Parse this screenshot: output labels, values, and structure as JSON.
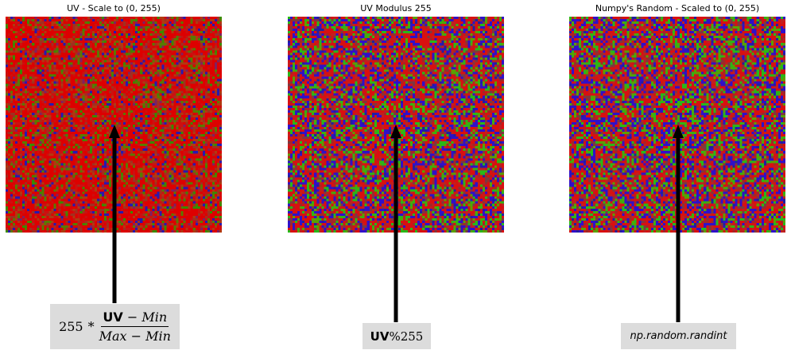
{
  "panels": [
    {
      "title": "UV - Scale to (0, 255)",
      "palette": [
        "#dd0000",
        "#cc1010",
        "#a03020",
        "#b03a10",
        "#5a7a00",
        "#2818b0",
        "#3a8a00",
        "#802060"
      ],
      "weights": [
        0.42,
        0.14,
        0.1,
        0.1,
        0.09,
        0.07,
        0.05,
        0.03
      ],
      "label": {
        "type": "formula",
        "coef": "255",
        "op": "*",
        "num_bold": "UV",
        "num_rest": " − Min",
        "den": "Max − Min"
      }
    },
    {
      "title": "UV Modulus 255",
      "palette": [
        "#d81010",
        "#c02020",
        "#3010c8",
        "#28b818",
        "#5aa000",
        "#7a3a40",
        "#a02828",
        "#2020a0"
      ],
      "weights": [
        0.32,
        0.1,
        0.2,
        0.12,
        0.1,
        0.06,
        0.06,
        0.04
      ],
      "label": {
        "type": "mod",
        "bold": "UV",
        "rest": "%255"
      }
    },
    {
      "title": "Numpy's Random - Scaled to (0, 255)",
      "palette": [
        "#d81010",
        "#c02020",
        "#3010c8",
        "#28b818",
        "#5aa000",
        "#7a3a40",
        "#a02828",
        "#2020a0"
      ],
      "weights": [
        0.3,
        0.1,
        0.21,
        0.13,
        0.1,
        0.06,
        0.06,
        0.04
      ],
      "label": {
        "type": "text",
        "text": "np.random.randint"
      }
    }
  ]
}
